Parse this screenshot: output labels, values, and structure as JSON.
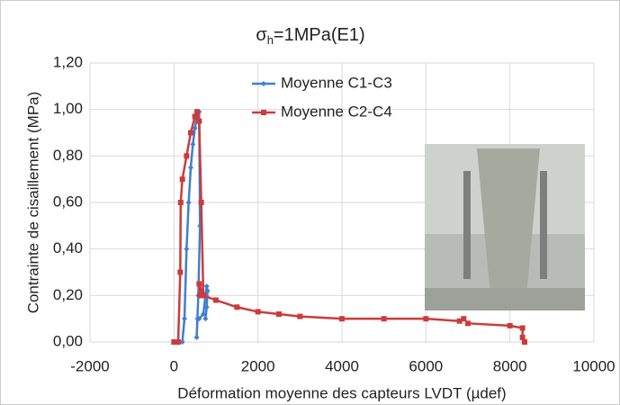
{
  "chart_data": {
    "type": "line",
    "title": {
      "symbol": "σ",
      "subscript": "h",
      "text": "=1MPa(E1)"
    },
    "x_label": "Déformation moyenne des capteurs LVDT (µdef)",
    "y_label": "Contrainte de cisaillement (MPa)",
    "xlim": [
      -2000,
      10000
    ],
    "xticks": [
      -2000,
      0,
      2000,
      4000,
      6000,
      8000,
      10000
    ],
    "ylim": [
      0,
      1.2
    ],
    "yticks": [
      {
        "value": 0,
        "label": "0,00"
      },
      {
        "value": 0.2,
        "label": "0,20"
      },
      {
        "value": 0.4,
        "label": "0,40"
      },
      {
        "value": 0.6,
        "label": "0,60"
      },
      {
        "value": 0.8,
        "label": "0,80"
      },
      {
        "value": 1.0,
        "label": "1,00"
      },
      {
        "value": 1.2,
        "label": "1,20"
      }
    ],
    "grid": true,
    "series": [
      {
        "name": "Moyenne C1-C3",
        "color": "#3f7fd0",
        "marker": "diamond",
        "x": [
          0,
          200,
          250,
          300,
          350,
          400,
          450,
          500,
          550,
          600,
          620,
          580,
          540,
          560,
          600,
          700,
          750,
          780,
          800,
          780,
          750
        ],
        "values": [
          0,
          0,
          0.1,
          0.4,
          0.6,
          0.75,
          0.85,
          0.92,
          0.97,
          0.99,
          0.5,
          0.2,
          0.02,
          0.1,
          0.1,
          0.12,
          0.2,
          0.24,
          0.22,
          0.15,
          0.1
        ]
      },
      {
        "name": "Moyenne C2-C4",
        "color": "#cc3b3b",
        "marker": "square",
        "x": [
          0,
          100,
          150,
          160,
          200,
          300,
          400,
          500,
          550,
          600,
          650,
          700,
          620,
          600,
          700,
          1000,
          1500,
          2000,
          2500,
          3000,
          4000,
          5000,
          6000,
          6800,
          6900,
          7000,
          8000,
          8300,
          8300,
          8350
        ],
        "values": [
          0,
          0,
          0.3,
          0.6,
          0.7,
          0.8,
          0.9,
          0.97,
          0.99,
          0.95,
          0.6,
          0.2,
          0.2,
          0.25,
          0.2,
          0.18,
          0.15,
          0.13,
          0.12,
          0.11,
          0.1,
          0.1,
          0.1,
          0.09,
          0.1,
          0.08,
          0.07,
          0.06,
          0.02,
          0
        ]
      }
    ]
  }
}
